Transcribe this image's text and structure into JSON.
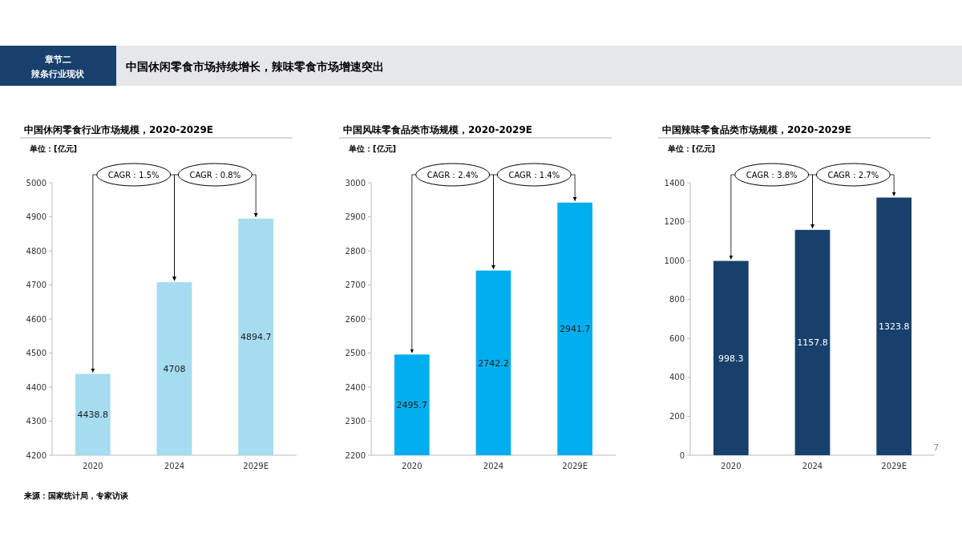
{
  "chart_data": [
    {
      "type": "other",
      "title": "中国休闲零食市场持续增长，辣味零食市场增速突出",
      "annotations": [
        "章节二",
        "辣条行业现状",
        "来源：国家统计局，专家访谈",
        "7"
      ]
    },
    {
      "type": "bar",
      "title": "中国休闲零食行业市场规模，2020-2029E",
      "subtitle": "单位：[亿元]",
      "categories": [
        "2020",
        "2024",
        "2029E"
      ],
      "values": [
        4438.8,
        4708,
        4894.7
      ],
      "color": "#a6dcf0",
      "ylim": [
        4200,
        5000
      ],
      "yticks": [
        4200,
        4300,
        4400,
        4500,
        4600,
        4700,
        4800,
        4900,
        5000
      ],
      "data_labels": true,
      "grid": false,
      "annotations": [
        "CAGR：1.5%",
        "CAGR：0.8%"
      ]
    },
    {
      "type": "bar",
      "title": "中国风味零食品类市场规模，2020-2029E",
      "subtitle": "单位：[亿元]",
      "categories": [
        "2020",
        "2024",
        "2029E"
      ],
      "values": [
        2495.7,
        2742.2,
        2941.7
      ],
      "color": "#00aeef",
      "ylim": [
        2200,
        3000
      ],
      "yticks": [
        2200,
        2300,
        2400,
        2500,
        2600,
        2700,
        2800,
        2900,
        3000
      ],
      "data_labels": true,
      "grid": false,
      "annotations": [
        "CAGR：2.4%",
        "CAGR：1.4%"
      ]
    },
    {
      "type": "bar",
      "title": "中国辣味零食品类市场规模，2020-2029E",
      "subtitle": "单位：[亿元]",
      "categories": [
        "2020",
        "2024",
        "2029E"
      ],
      "values": [
        998.3,
        1157.8,
        1323.8
      ],
      "color": "#17406d",
      "ylim": [
        0,
        1400
      ],
      "yticks": [
        0,
        200,
        400,
        600,
        800,
        1000,
        1200,
        1400
      ],
      "data_labels": true,
      "grid": false,
      "annotations": [
        "CAGR：3.8%",
        "CAGR：2.7%"
      ]
    }
  ]
}
